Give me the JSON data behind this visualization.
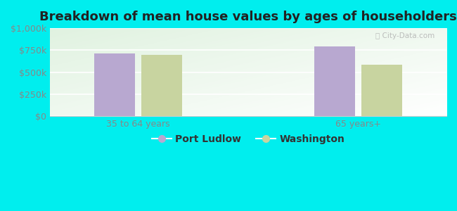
{
  "title": "Breakdown of mean house values by ages of householders",
  "categories": [
    "35 to 64 years",
    "65 years+"
  ],
  "series": {
    "Port Ludlow": [
      710000,
      790000
    ],
    "Washington": [
      700000,
      585000
    ]
  },
  "bar_colors": {
    "Port Ludlow": "#b8a8d0",
    "Washington": "#c8d4a0"
  },
  "ylim": [
    0,
    1000000
  ],
  "yticks": [
    0,
    250000,
    500000,
    750000,
    1000000
  ],
  "ytick_labels": [
    "$0",
    "$250k",
    "$500k",
    "$750k",
    "$1,000k"
  ],
  "background_color": "#00eeee",
  "legend_labels": [
    "Port Ludlow",
    "Washington"
  ],
  "bar_width": 0.28,
  "watermark": "City-Data.com",
  "title_fontsize": 13,
  "tick_fontsize": 9,
  "legend_fontsize": 10,
  "group_centers": [
    1.0,
    2.5
  ],
  "xlim": [
    0.4,
    3.1
  ]
}
